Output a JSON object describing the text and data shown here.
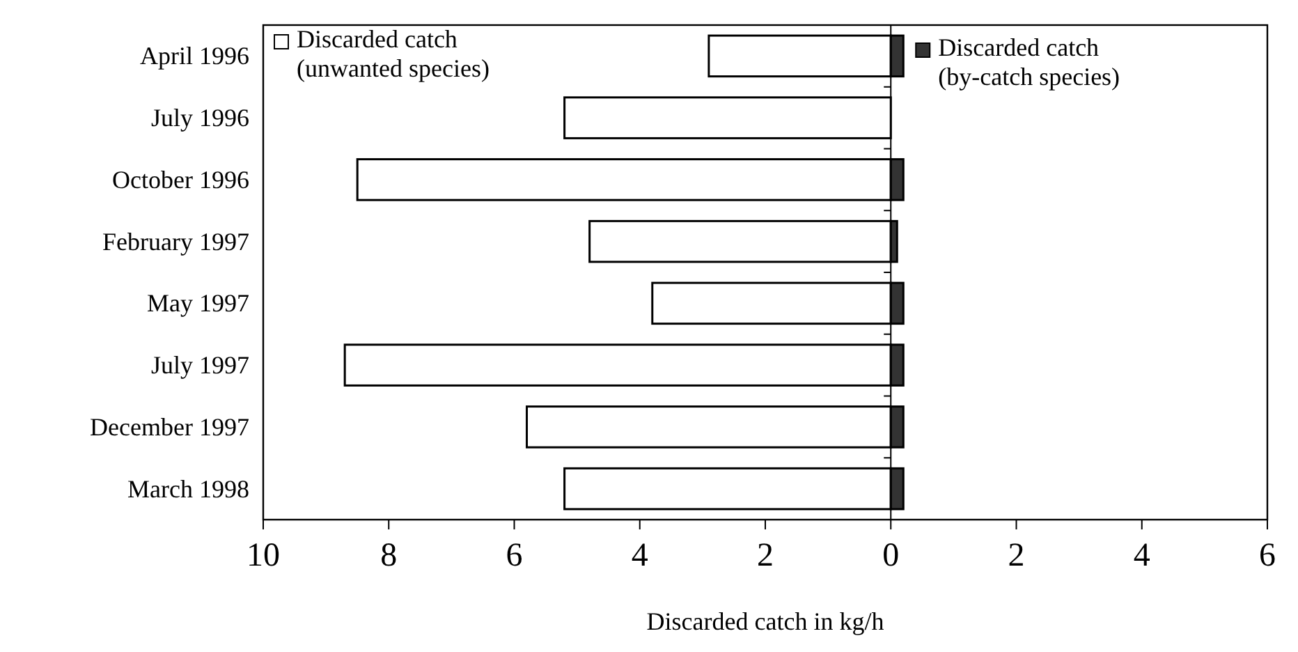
{
  "chart_data": {
    "type": "bar",
    "orientation": "horizontal",
    "stacked": true,
    "xlabel": "Discarded catch in kg/h",
    "categories": [
      "April 1996",
      "July 1996",
      "October 1996",
      "February 1997",
      "May 1997",
      "July 1997",
      "December 1997",
      "March 1998"
    ],
    "series": [
      {
        "name": "Discarded catch\n(unwanted species)",
        "color": "#ffffff",
        "values": [
          -2.9,
          -5.2,
          -8.5,
          -4.8,
          -3.8,
          -8.7,
          -5.8,
          -5.2
        ]
      },
      {
        "name": "Discarded catch\n(by-catch species)",
        "color": "#333333",
        "values": [
          0.2,
          0,
          0.2,
          0.1,
          0.2,
          0.2,
          0.2,
          0.2
        ]
      }
    ],
    "xlim": [
      -10,
      6
    ],
    "xticks": [
      {
        "value": -10,
        "label": "10"
      },
      {
        "value": -8,
        "label": "8"
      },
      {
        "value": -6,
        "label": "6"
      },
      {
        "value": -4,
        "label": "4"
      },
      {
        "value": -2,
        "label": "2"
      },
      0,
      2,
      4,
      6
    ],
    "legend": "top"
  }
}
